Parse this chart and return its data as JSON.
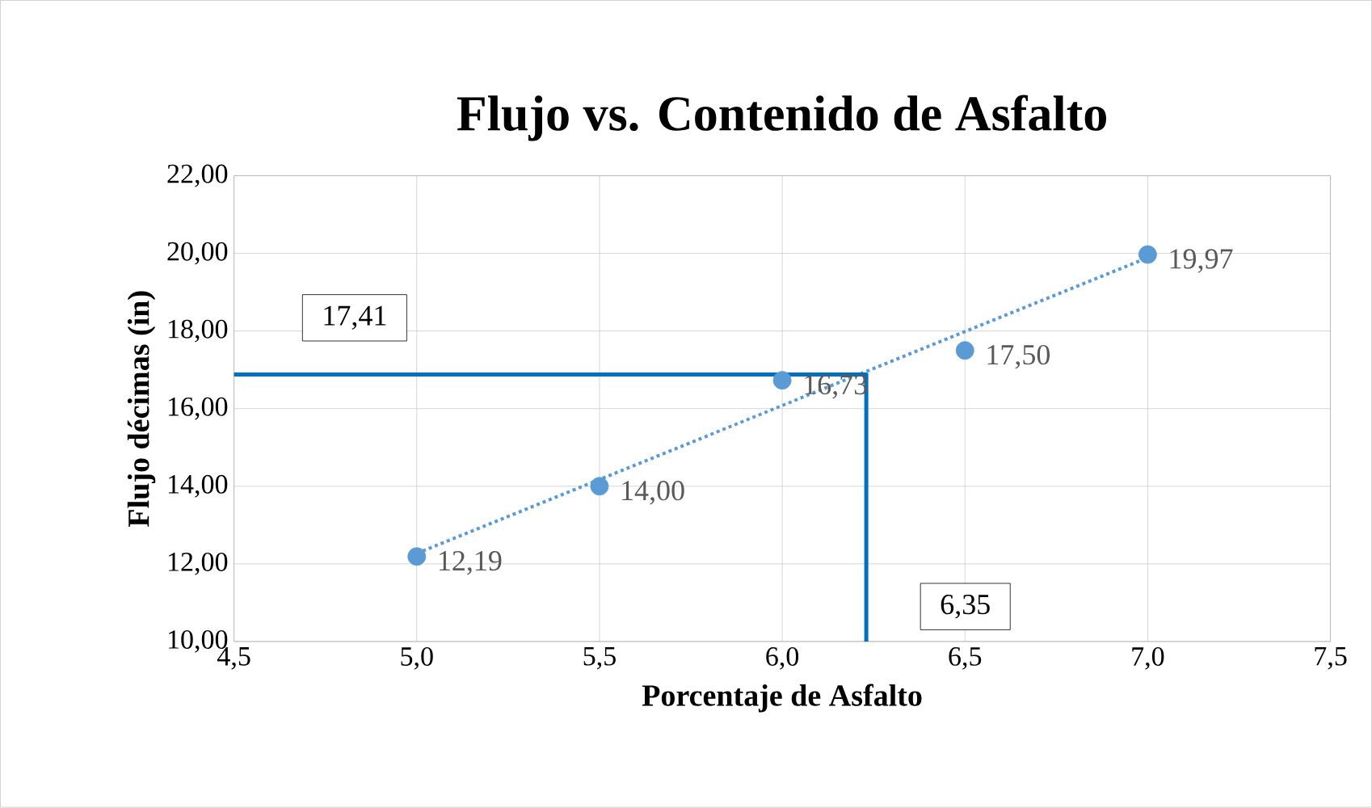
{
  "chart_data": {
    "type": "scatter",
    "title": "Flujo vs. Contenido de Asfalto",
    "xlabel": "Porcentaje de Asfalto",
    "ylabel": "Flujo décimas (in)",
    "x": [
      5.0,
      5.5,
      6.0,
      6.5,
      7.0
    ],
    "series": [
      {
        "color": "#5b9bd5",
        "marker": "circle",
        "values": [
          12.19,
          14.0,
          16.73,
          17.5,
          19.97
        ],
        "value_labels": [
          "12,19",
          "14,00",
          "16,73",
          "17,50",
          "19,97"
        ]
      },
      {
        "type": "line",
        "x": [
          5.0,
          7.0
        ],
        "values": [
          12.27,
          19.89
        ],
        "color": "#5b9bd5",
        "marker": "none",
        "line_style": "dotted"
      },
      {
        "type": "line",
        "x": [
          4.5,
          6.23,
          6.23
        ],
        "values": [
          16.88,
          16.88,
          10.0
        ],
        "color": "#0070c0",
        "marker": "none",
        "line_style": "solid"
      }
    ],
    "xlim": [
      4.5,
      7.5
    ],
    "ylim": [
      10,
      22
    ],
    "xticks": [
      {
        "value": 4.5,
        "label": "4,5"
      },
      {
        "value": 5.0,
        "label": "5,0"
      },
      {
        "value": 5.5,
        "label": "5,5"
      },
      {
        "value": 6.0,
        "label": "6,0"
      },
      {
        "value": 6.5,
        "label": "6,5"
      },
      {
        "value": 7.0,
        "label": "7,0"
      },
      {
        "value": 7.5,
        "label": "7,5"
      }
    ],
    "yticks": [
      {
        "value": 10,
        "label": "10,00"
      },
      {
        "value": 12,
        "label": "12,00"
      },
      {
        "value": 14,
        "label": "14,00"
      },
      {
        "value": 16,
        "label": "16,00"
      },
      {
        "value": 18,
        "label": "18,00"
      },
      {
        "value": 20,
        "label": "20,00"
      },
      {
        "value": 22,
        "label": "22,00"
      }
    ],
    "annotations": [
      "17,41",
      "6,35"
    ],
    "grid": true
  }
}
